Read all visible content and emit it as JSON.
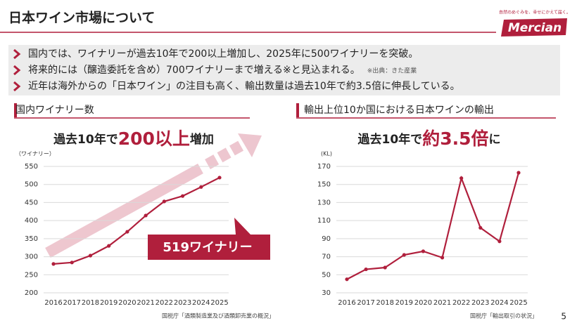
{
  "header": {
    "title": "日本ワイン市場について",
    "logo_tagline": "自然のめぐみを、幸せにかえて届く。",
    "logo_name": "Mercian"
  },
  "bullets": [
    "国内では、ワイナリーが過去10年で200以上増加し、2025年に500ワイナリーを突破。",
    "将来的には（醸造委託を含め）700ワイナリーまで増える※と見込まれる。",
    "近年は海外からの「日本ワイン」の注目も高く、輸出数量は過去10年で約3.5倍に伸長している。"
  ],
  "bullet_note": "※出典：きた産業",
  "chart_data": [
    {
      "type": "line",
      "title": "国内ワイナリー数",
      "headline": [
        "過去10年で",
        "200以上",
        "増加"
      ],
      "y_unit": "（ワイナリー）",
      "categories": [
        "2016",
        "2017",
        "2018",
        "2019",
        "2020",
        "2021",
        "2022",
        "2023",
        "2024",
        "2025"
      ],
      "series": [
        {
          "name": "国内ワイナリー数",
          "color": "#b01f3c",
          "values": [
            280,
            284,
            303,
            330,
            369,
            414,
            453,
            468,
            493,
            519
          ]
        }
      ],
      "ylim": [
        200,
        550
      ],
      "yticks": [
        200,
        250,
        300,
        350,
        400,
        450,
        500,
        550
      ],
      "grid": true,
      "annotation": "519ワイナリー",
      "source": "国税庁「酒類製造業及び酒類卸売業の概況」"
    },
    {
      "type": "line",
      "title": "輸出上位10か国における日本ワインの輸出",
      "headline": [
        "過去10年で",
        "約3.5倍",
        "に"
      ],
      "y_unit": "(KL)",
      "categories": [
        "2016",
        "2017",
        "2018",
        "2019",
        "2020",
        "2021",
        "2022",
        "2023",
        "2024",
        "2025"
      ],
      "series": [
        {
          "name": "輸出",
          "color": "#b01f3c",
          "values": [
            45,
            56,
            58,
            72,
            76,
            69,
            157,
            102,
            87,
            163
          ]
        }
      ],
      "ylim": [
        30,
        170
      ],
      "yticks": [
        30,
        50,
        70,
        90,
        110,
        130,
        150,
        170
      ],
      "grid": true,
      "source": "国税庁「輸出取引の状況」"
    }
  ],
  "page_number": "5"
}
